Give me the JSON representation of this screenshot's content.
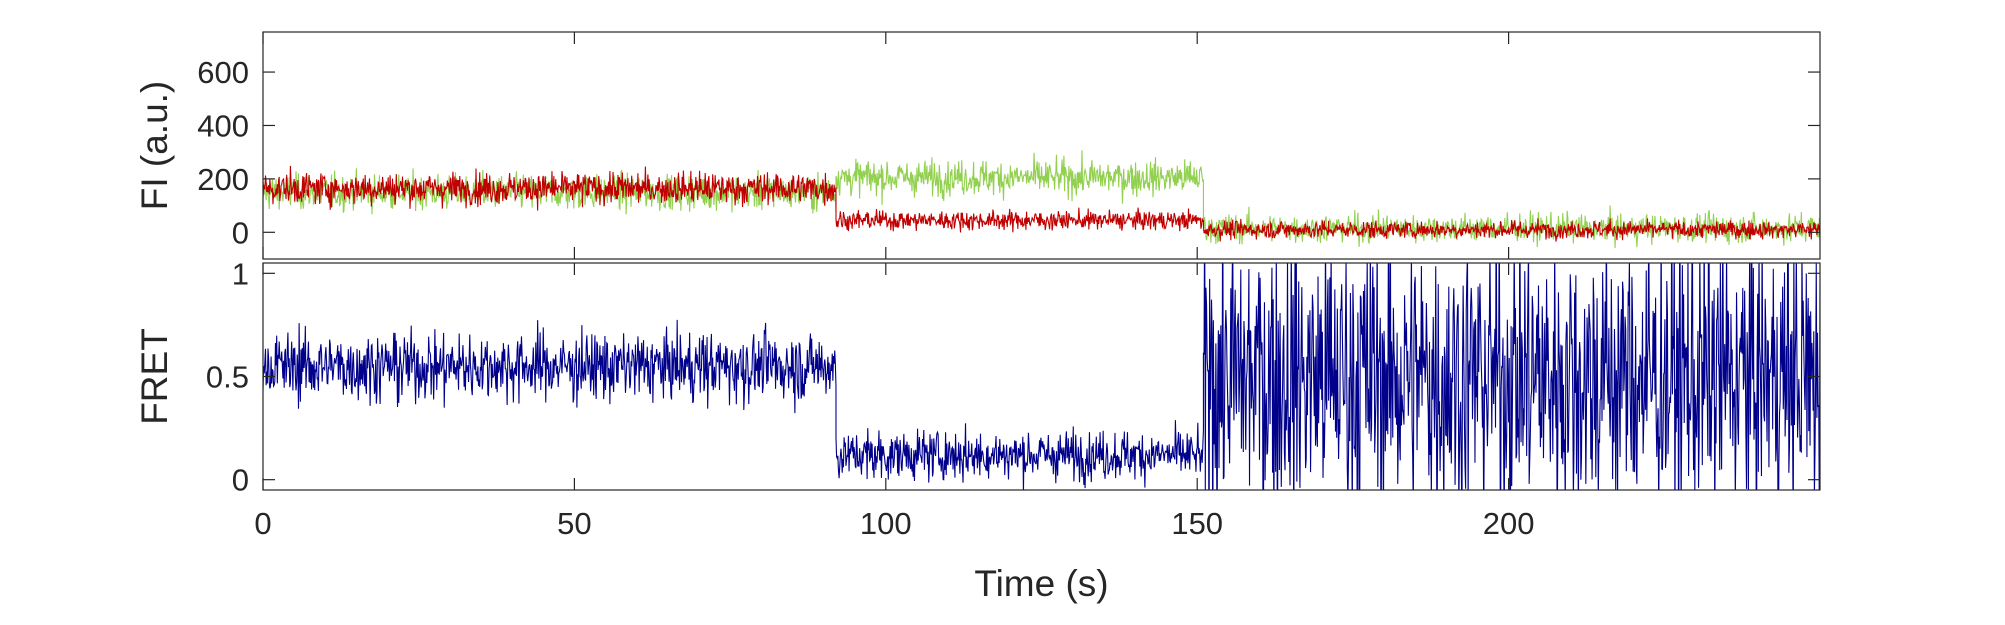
{
  "chart_data": [
    {
      "type": "line",
      "panel": "top",
      "ylabel": "FI (a.u.)",
      "xlabel": "",
      "xlim": [
        0,
        250
      ],
      "ylim": [
        -100,
        750
      ],
      "yticks": [
        0,
        200,
        400,
        600
      ],
      "ytick_labels": [
        "0",
        "200",
        "400",
        "600"
      ],
      "grid": false,
      "series": [
        {
          "color": "#92d050",
          "segments": [
            {
              "x": [
                0,
                92
              ],
              "mean": 150,
              "noise": 55
            },
            {
              "x": [
                92,
                151
              ],
              "mean": 205,
              "noise": 55
            },
            {
              "x": [
                151,
                250
              ],
              "mean": 15,
              "noise": 45
            }
          ]
        },
        {
          "color": "#c00000",
          "segments": [
            {
              "x": [
                0,
                92
              ],
              "mean": 165,
              "noise": 50
            },
            {
              "x": [
                92,
                151
              ],
              "mean": 45,
              "noise": 30
            },
            {
              "x": [
                151,
                250
              ],
              "mean": 10,
              "noise": 28
            }
          ]
        }
      ]
    },
    {
      "type": "line",
      "panel": "bottom",
      "ylabel": "FRET",
      "xlabel": "Time (s)",
      "xlim": [
        0,
        250
      ],
      "ylim": [
        -0.05,
        1.05
      ],
      "yticks": [
        0,
        0.5,
        1
      ],
      "ytick_labels": [
        "0",
        "0.5",
        "1"
      ],
      "xticks": [
        0,
        50,
        100,
        150,
        200
      ],
      "xtick_labels": [
        "0",
        "50",
        "100",
        "150",
        "200"
      ],
      "grid": false,
      "series": [
        {
          "color": "#00008b",
          "segments": [
            {
              "x": [
                0,
                92
              ],
              "mean": 0.55,
              "noise": 0.14
            },
            {
              "x": [
                92,
                151
              ],
              "mean": 0.12,
              "noise": 0.1
            },
            {
              "x": [
                151,
                250
              ],
              "mean": 0.5,
              "noise": 0.6
            }
          ]
        }
      ]
    }
  ]
}
